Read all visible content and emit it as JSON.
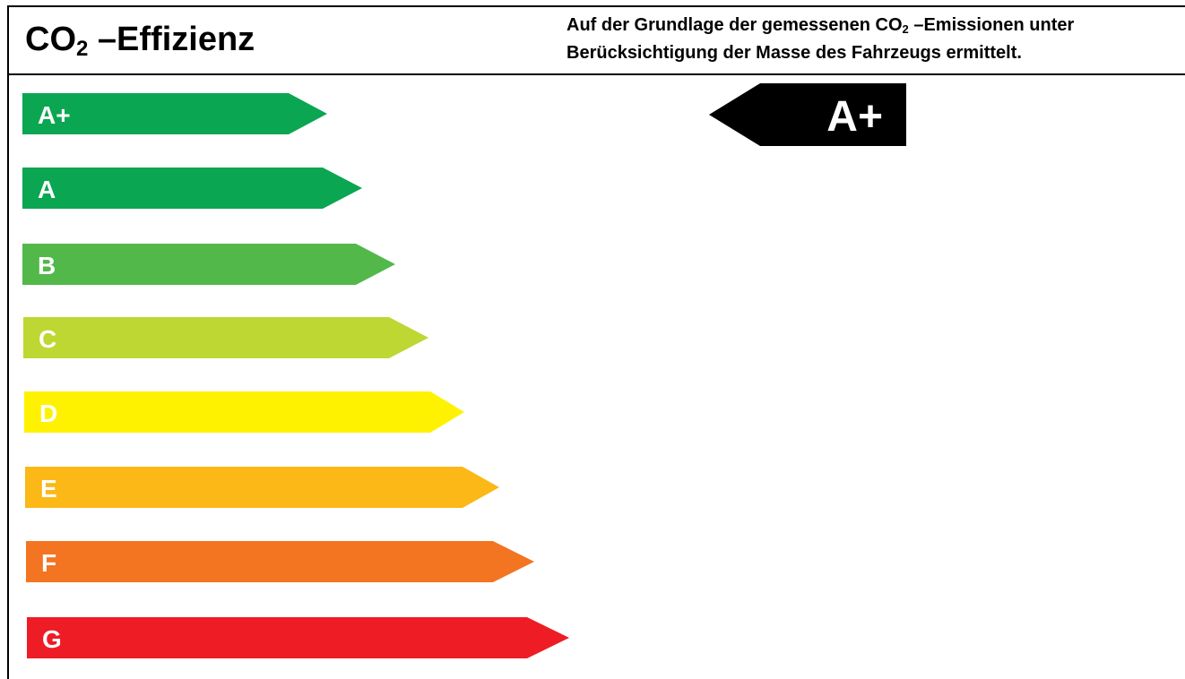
{
  "title": {
    "main": "CO",
    "sub": "2",
    "suffix": " –Effizienz"
  },
  "note": {
    "part1": "Auf der Grundlage der gemessenen CO",
    "sub": "2",
    "part2": " –Emissionen unter Berücksichtigung der Masse des Fahrzeugs ermittelt."
  },
  "classes": [
    {
      "label": "A+",
      "color": "#0aa652"
    },
    {
      "label": "A",
      "color": "#0aa652"
    },
    {
      "label": "B",
      "color": "#52b84a"
    },
    {
      "label": "C",
      "color": "#bed732"
    },
    {
      "label": "D",
      "color": "#fff200"
    },
    {
      "label": "E",
      "color": "#fbb817"
    },
    {
      "label": "F",
      "color": "#f37421"
    },
    {
      "label": "G",
      "color": "#ee1c24"
    }
  ],
  "rating": {
    "label": "A+",
    "color": "#000000"
  }
}
